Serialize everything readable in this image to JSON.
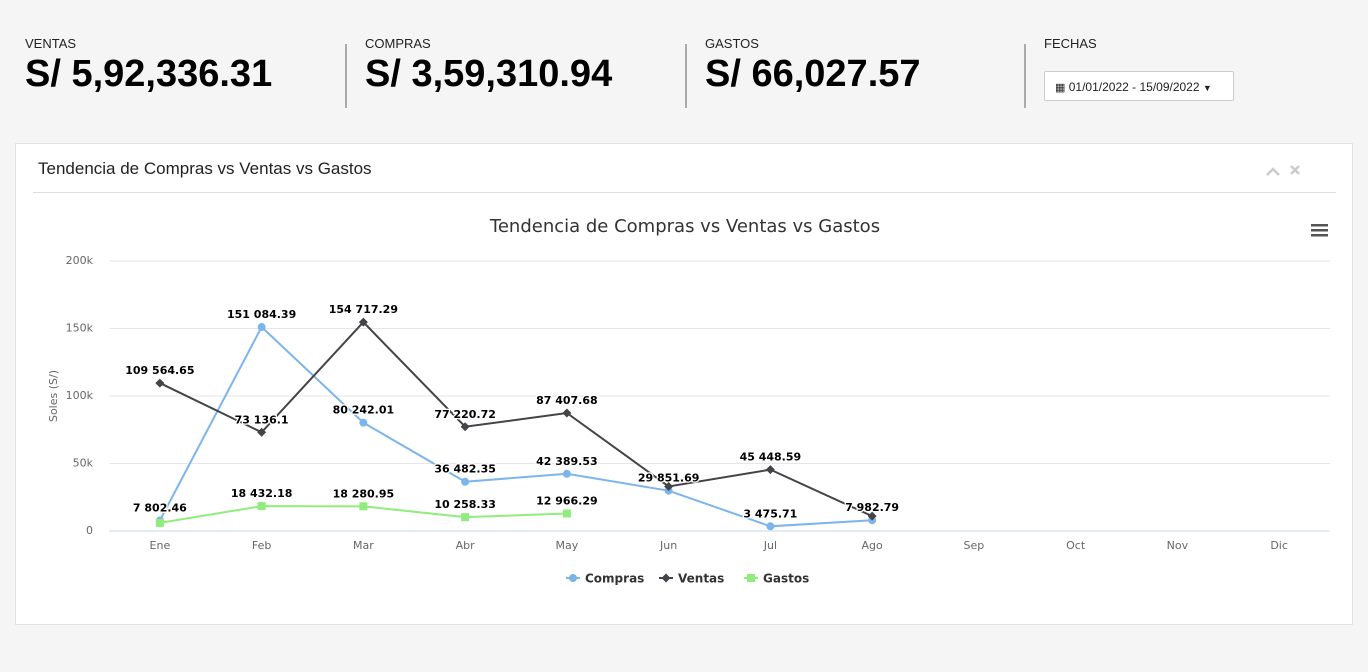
{
  "stats": [
    {
      "label": "VENTAS",
      "value": "S/ 5,92,336.31"
    },
    {
      "label": "COMPRAS",
      "value": "S/ 3,59,310.94"
    },
    {
      "label": "GASTOS",
      "value": "S/ 66,027.57"
    }
  ],
  "dates": {
    "label": "FECHAS",
    "range": "01/01/2022 - 15/09/2022"
  },
  "panel": {
    "title": "Tendencia de Compras vs Ventas vs Gastos"
  },
  "chart_data": {
    "type": "line",
    "title": "Tendencia de Compras vs Ventas vs Gastos",
    "y_label": "Soles (S/)",
    "categories": [
      "Ene",
      "Feb",
      "Mar",
      "Abr",
      "May",
      "Jun",
      "Jul",
      "Ago",
      "Sep",
      "Oct",
      "Nov",
      "Dic"
    ],
    "ylim": [
      0,
      200000
    ],
    "yticks": [
      0,
      {
        "value": 50000,
        "label": "50k"
      },
      {
        "value": 100000,
        "label": "100k"
      },
      {
        "value": 150000,
        "label": "150k"
      },
      {
        "value": 200000,
        "label": "200k"
      }
    ],
    "grid": true,
    "legend": "bottom",
    "series": [
      {
        "name": "Compras",
        "color": "#7cb5ec",
        "marker": "circle",
        "values": [
          7802.46,
          151084.39,
          80242.01,
          36482.35,
          42389.53,
          29851.69,
          3475.71,
          7982.79,
          null,
          null,
          null,
          null
        ],
        "value_labels": [
          "7 802.46",
          "151 084.39",
          "80 242.01",
          "36 482.35",
          "42 389.53",
          "29 851.69",
          "3 475.71",
          "7 982.79",
          null,
          null,
          null,
          null
        ]
      },
      {
        "name": "Ventas",
        "color": "#434348",
        "marker": "diamond",
        "values": [
          109564.65,
          73136.1,
          154717.29,
          77220.72,
          87407.68,
          33000,
          45448.59,
          11000,
          null,
          null,
          null,
          null
        ],
        "value_labels": [
          "109 564.65",
          "73 136.1",
          "154 717.29",
          "77 220.72",
          "87 407.68",
          null,
          "45 448.59",
          null,
          null,
          null,
          null,
          null
        ]
      },
      {
        "name": "Gastos",
        "color": "#90ed7d",
        "marker": "square",
        "values": [
          6000,
          18432.18,
          18280.95,
          10258.33,
          12966.29,
          null,
          null,
          null,
          null,
          null,
          null,
          null
        ],
        "value_labels": [
          null,
          "18 432.18",
          "18 280.95",
          "10 258.33",
          "12 966.29",
          null,
          null,
          null,
          null,
          null,
          null,
          null
        ]
      }
    ]
  }
}
